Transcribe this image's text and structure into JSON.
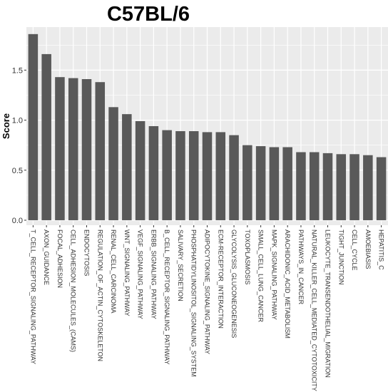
{
  "chart_data": {
    "type": "bar",
    "title": "C57BL/6",
    "xlabel": "",
    "ylabel": "Score",
    "ylim": [
      -0.05,
      1.93
    ],
    "yticks": [
      0.0,
      0.5,
      1.0,
      1.5
    ],
    "ytick_labels": [
      "0.0",
      "0.5",
      "1.0",
      "1.5"
    ],
    "grid": true,
    "bar_color": "#595959",
    "panel_color": "#ebebeb",
    "grid_color": "#ffffff",
    "categories": [
      "T_CELL_RECEPTOR_SIGNALING_PATHWAY",
      "AXON_GUIDANCE",
      "FOCAL_ADHESION",
      "CELL_ADHESION_MOLECULES_(CAMS)",
      "ENDOCYTOSIS",
      "REGULATION_OF_ACTIN_CYTOSKELETON",
      "RENAL_CELL_CARCINOMA",
      "WNT_SIGNALING_PATHWAY",
      "VEGF_SIGNALING_PATHWAY",
      "ERBB_SIGNALING_PATHWAY",
      "B_CELL_RECEPTOR_SIGNALING_PATHWAY",
      "SALIVARY_SECRETION",
      "PHOSPHATIDYLINOSITOL_SIGNALING_SYSTEM",
      "ADIPOCYTOKINE_SIGNALING_PATHWAY",
      "ECM-RECEPTOR_INTERACTION",
      "GLYCOLYSIS_GLUCONEOGENESIS",
      "TOXOPLASMOSIS",
      "SMALL_CELL_LUNG_CANCER",
      "MAPK_SIGNALING_PATHWAY",
      "ARACHIDONIC_ACID_METABOLISM",
      "PATHWAYS_IN_CANCER",
      "NATURAL_KILLER_CELL_MEDIATED_CYTOTOXICITY",
      "LEUKOCYTE_TRANSENDOTHELIAL_MIGRATION",
      "TIGHT_JUNCTION",
      "CELL_CYCLE",
      "AMOEBIASIS",
      "HEPATITIS_C"
    ],
    "values": [
      1.86,
      1.66,
      1.43,
      1.42,
      1.41,
      1.38,
      1.13,
      1.06,
      0.99,
      0.94,
      0.9,
      0.89,
      0.89,
      0.88,
      0.88,
      0.85,
      0.75,
      0.74,
      0.73,
      0.73,
      0.68,
      0.68,
      0.67,
      0.66,
      0.66,
      0.65,
      0.63
    ]
  }
}
